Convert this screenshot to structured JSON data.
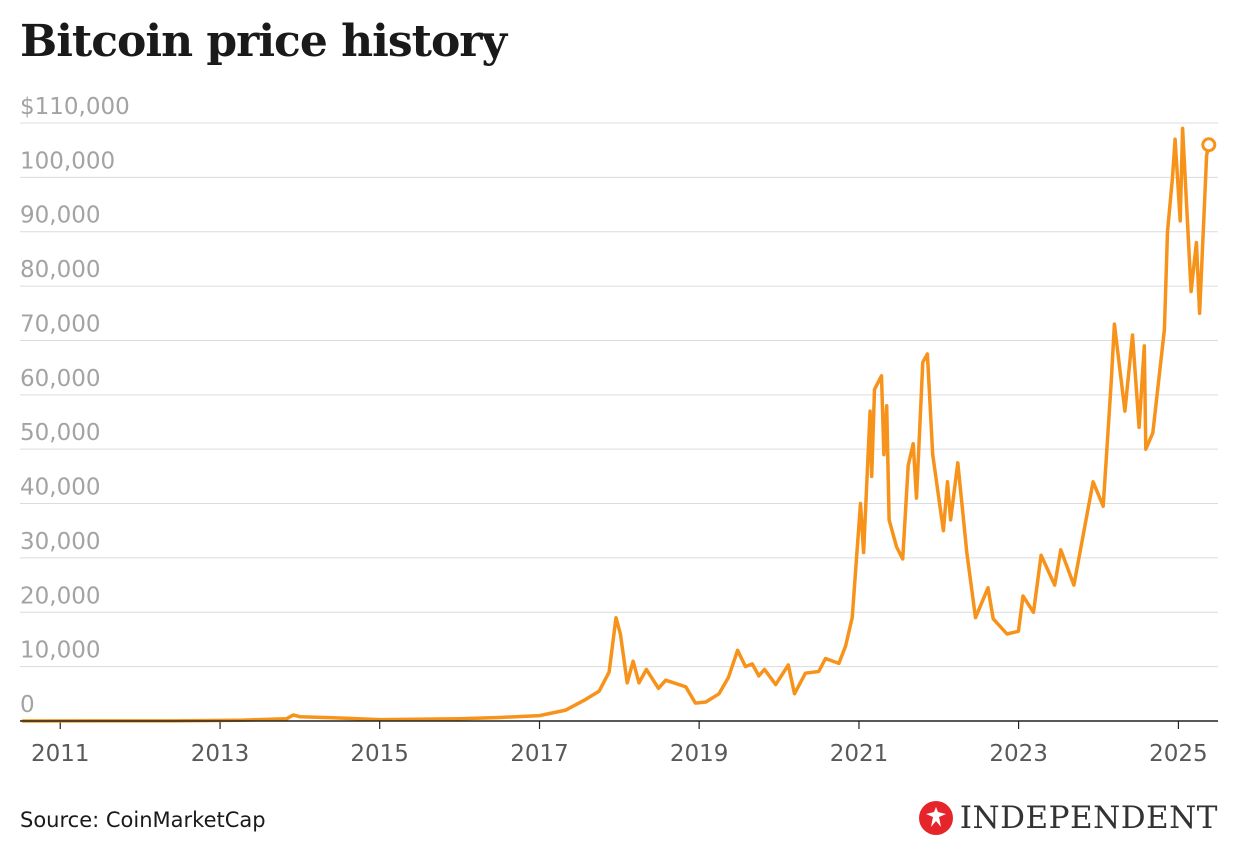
{
  "title": "Bitcoin price history",
  "source": "Source: CoinMarketCap",
  "brand": {
    "name": "INDEPENDENT",
    "icon": "eagle-logo-icon",
    "icon_color": "#e5252a"
  },
  "colors": {
    "line": "#f7931a",
    "grid": "#dcdcdc",
    "axis": "#222222"
  },
  "chart_data": {
    "type": "line",
    "title": "Bitcoin price history",
    "xlabel": "",
    "ylabel": "",
    "xlim": [
      "2010-07-01",
      "2025-07-01"
    ],
    "ylim": [
      0,
      110000
    ],
    "grid": true,
    "y_ticks": [
      {
        "value": 0,
        "label": "0"
      },
      {
        "value": 10000,
        "label": "10,000"
      },
      {
        "value": 20000,
        "label": "20,000"
      },
      {
        "value": 30000,
        "label": "30,000"
      },
      {
        "value": 40000,
        "label": "40,000"
      },
      {
        "value": 50000,
        "label": "50,000"
      },
      {
        "value": 60000,
        "label": "60,000"
      },
      {
        "value": 70000,
        "label": "70,000"
      },
      {
        "value": 80000,
        "label": "80,000"
      },
      {
        "value": 90000,
        "label": "90,000"
      },
      {
        "value": 100000,
        "label": "100,000"
      },
      {
        "value": 110000,
        "label": "$110,000"
      }
    ],
    "x_ticks": [
      "2011",
      "2013",
      "2015",
      "2017",
      "2019",
      "2021",
      "2023",
      "2025"
    ],
    "series": [
      {
        "end_marker": true,
        "points": [
          [
            "2010-07-15",
            0
          ],
          [
            "2011-06-01",
            20
          ],
          [
            "2012-06-01",
            10
          ],
          [
            "2013-04-01",
            150
          ],
          [
            "2013-11-01",
            400
          ],
          [
            "2013-12-01",
            1100
          ],
          [
            "2014-01-01",
            800
          ],
          [
            "2014-06-01",
            600
          ],
          [
            "2015-01-01",
            250
          ],
          [
            "2016-01-01",
            430
          ],
          [
            "2016-07-01",
            650
          ],
          [
            "2017-01-01",
            1000
          ],
          [
            "2017-05-01",
            2000
          ],
          [
            "2017-08-01",
            4000
          ],
          [
            "2017-10-01",
            5500
          ],
          [
            "2017-11-15",
            9000
          ],
          [
            "2017-12-17",
            19000
          ],
          [
            "2018-01-06",
            16000
          ],
          [
            "2018-02-06",
            7000
          ],
          [
            "2018-03-05",
            11000
          ],
          [
            "2018-04-01",
            7000
          ],
          [
            "2018-05-05",
            9500
          ],
          [
            "2018-06-29",
            6000
          ],
          [
            "2018-08-01",
            7500
          ],
          [
            "2018-11-01",
            6300
          ],
          [
            "2018-12-15",
            3300
          ],
          [
            "2019-02-01",
            3500
          ],
          [
            "2019-04-02",
            5000
          ],
          [
            "2019-05-15",
            8000
          ],
          [
            "2019-06-26",
            13000
          ],
          [
            "2019-08-01",
            10000
          ],
          [
            "2019-09-01",
            10500
          ],
          [
            "2019-10-01",
            8300
          ],
          [
            "2019-10-27",
            9500
          ],
          [
            "2019-12-17",
            6700
          ],
          [
            "2020-02-13",
            10300
          ],
          [
            "2020-03-12",
            5000
          ],
          [
            "2020-05-01",
            8800
          ],
          [
            "2020-07-01",
            9100
          ],
          [
            "2020-08-01",
            11500
          ],
          [
            "2020-10-01",
            10600
          ],
          [
            "2020-11-01",
            13800
          ],
          [
            "2020-12-01",
            19000
          ],
          [
            "2021-01-08",
            40000
          ],
          [
            "2021-01-22",
            31000
          ],
          [
            "2021-02-21",
            57000
          ],
          [
            "2021-02-28",
            45000
          ],
          [
            "2021-03-13",
            61000
          ],
          [
            "2021-04-14",
            63500
          ],
          [
            "2021-04-25",
            49000
          ],
          [
            "2021-05-08",
            58000
          ],
          [
            "2021-05-19",
            37000
          ],
          [
            "2021-06-22",
            32000
          ],
          [
            "2021-07-20",
            29800
          ],
          [
            "2021-08-14",
            47000
          ],
          [
            "2021-09-06",
            51000
          ],
          [
            "2021-09-21",
            41000
          ],
          [
            "2021-10-20",
            66000
          ],
          [
            "2021-11-10",
            67500
          ],
          [
            "2021-12-04",
            49000
          ],
          [
            "2022-01-22",
            35000
          ],
          [
            "2022-02-10",
            44000
          ],
          [
            "2022-02-24",
            37000
          ],
          [
            "2022-03-29",
            47500
          ],
          [
            "2022-05-09",
            31000
          ],
          [
            "2022-06-18",
            19000
          ],
          [
            "2022-08-14",
            24500
          ],
          [
            "2022-09-07",
            18800
          ],
          [
            "2022-11-09",
            16000
          ],
          [
            "2022-12-31",
            16500
          ],
          [
            "2023-01-21",
            23000
          ],
          [
            "2023-03-10",
            20000
          ],
          [
            "2023-04-14",
            30500
          ],
          [
            "2023-06-15",
            25000
          ],
          [
            "2023-07-13",
            31500
          ],
          [
            "2023-09-11",
            25000
          ],
          [
            "2023-10-25",
            34500
          ],
          [
            "2023-12-08",
            44000
          ],
          [
            "2024-01-23",
            39500
          ],
          [
            "2024-02-28",
            62000
          ],
          [
            "2024-03-14",
            73000
          ],
          [
            "2024-05-01",
            57000
          ],
          [
            "2024-06-05",
            71000
          ],
          [
            "2024-07-05",
            54000
          ],
          [
            "2024-07-29",
            69000
          ],
          [
            "2024-08-05",
            50000
          ],
          [
            "2024-09-06",
            53000
          ],
          [
            "2024-10-29",
            72000
          ],
          [
            "2024-11-12",
            90000
          ],
          [
            "2024-12-05",
            100000
          ],
          [
            "2024-12-17",
            107000
          ],
          [
            "2025-01-09",
            92000
          ],
          [
            "2025-01-20",
            109000
          ],
          [
            "2025-02-28",
            79000
          ],
          [
            "2025-03-24",
            88000
          ],
          [
            "2025-04-08",
            75000
          ],
          [
            "2025-05-01",
            96000
          ],
          [
            "2025-05-10",
            104000
          ],
          [
            "2025-05-20",
            106000
          ]
        ]
      }
    ]
  }
}
